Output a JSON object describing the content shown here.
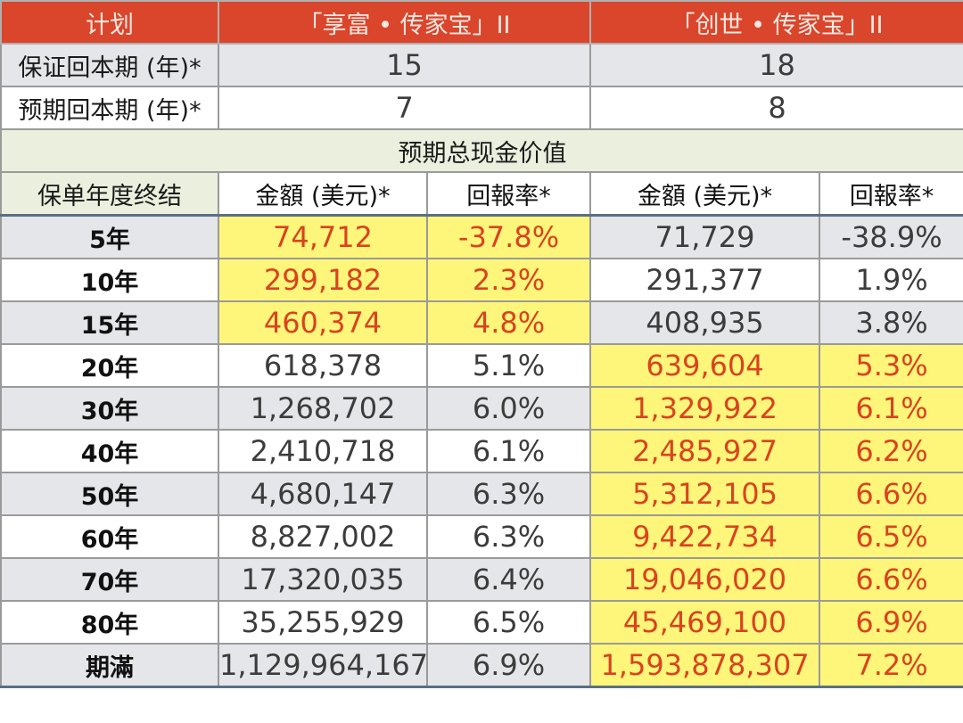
{
  "colors": {
    "header_bg": "#d9462b",
    "highlight_bg": "#fdf67a",
    "highlight_text": "#d9431f",
    "section_bg": "#eaefde",
    "grey_row": "#e4e6e9"
  },
  "header": {
    "plan_label": "计划",
    "plan_a": "「享富 • 传家宝」II",
    "plan_b": "「创世 • 传家宝」II"
  },
  "guaranteed_breakeven": {
    "label": "保证回本期 (年)*",
    "plan_a": "15",
    "plan_b": "18"
  },
  "expected_breakeven": {
    "label": "预期回本期 (年)*",
    "plan_a": "7",
    "plan_b": "8"
  },
  "section_title": "预期总现金价值",
  "subheader": {
    "year_label": "保单年度终结",
    "amount_a": "金額 (美元)*",
    "return_a": "回報率*",
    "amount_b": "金額 (美元)*",
    "return_b": "回報率*"
  },
  "rows": [
    {
      "year": "5年",
      "amount_a": "74,712",
      "return_a": "-37.8%",
      "amount_b": "71,729",
      "return_b": "-38.9%",
      "highlight": "a"
    },
    {
      "year": "10年",
      "amount_a": "299,182",
      "return_a": "2.3%",
      "amount_b": "291,377",
      "return_b": "1.9%",
      "highlight": "a"
    },
    {
      "year": "15年",
      "amount_a": "460,374",
      "return_a": "4.8%",
      "amount_b": "408,935",
      "return_b": "3.8%",
      "highlight": "a"
    },
    {
      "year": "20年",
      "amount_a": "618,378",
      "return_a": "5.1%",
      "amount_b": "639,604",
      "return_b": "5.3%",
      "highlight": "b"
    },
    {
      "year": "30年",
      "amount_a": "1,268,702",
      "return_a": "6.0%",
      "amount_b": "1,329,922",
      "return_b": "6.1%",
      "highlight": "b"
    },
    {
      "year": "40年",
      "amount_a": "2,410,718",
      "return_a": "6.1%",
      "amount_b": "2,485,927",
      "return_b": "6.2%",
      "highlight": "b"
    },
    {
      "year": "50年",
      "amount_a": "4,680,147",
      "return_a": "6.3%",
      "amount_b": "5,312,105",
      "return_b": "6.6%",
      "highlight": "b"
    },
    {
      "year": "60年",
      "amount_a": "8,827,002",
      "return_a": "6.3%",
      "amount_b": "9,422,734",
      "return_b": "6.5%",
      "highlight": "b"
    },
    {
      "year": "70年",
      "amount_a": "17,320,035",
      "return_a": "6.4%",
      "amount_b": "19,046,020",
      "return_b": "6.6%",
      "highlight": "b"
    },
    {
      "year": "80年",
      "amount_a": "35,255,929",
      "return_a": "6.5%",
      "amount_b": "45,469,100",
      "return_b": "6.9%",
      "highlight": "b"
    },
    {
      "year": "期滿",
      "amount_a": "1,129,964,167",
      "return_a": "6.9%",
      "amount_b": "1,593,878,307",
      "return_b": "7.2%",
      "highlight": "b"
    }
  ]
}
